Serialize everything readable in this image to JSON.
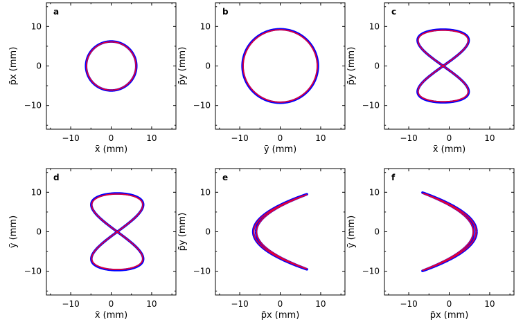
{
  "figure": {
    "description_note": ""
  },
  "colors": {
    "series_a": "#0000ff",
    "series_b": "#e0003a",
    "axis": "#000000"
  },
  "chart_data": [
    {
      "panel": "a",
      "type": "line",
      "xlabel": "x̄ (mm)",
      "ylabel": "p̄x (mm)",
      "xlim": [
        -16,
        16
      ],
      "ylim": [
        -16,
        16
      ],
      "xticks": [
        -10,
        0,
        10
      ],
      "yticks": [
        -10,
        0,
        10
      ],
      "xticklabels": [
        "−10",
        "0",
        "10"
      ],
      "yticklabels": [
        "−10",
        "0",
        "10"
      ],
      "grid": false,
      "curve": {
        "kind": "ellipse",
        "ax": 6.2,
        "ay": 6.2,
        "shape": "circle"
      },
      "series": [
        {
          "color": "#0000ff",
          "values": [
            [
              6.2,
              0
            ],
            [
              4.4,
              4.4
            ],
            [
              0,
              6.2
            ],
            [
              -4.4,
              4.4
            ],
            [
              -6.2,
              0
            ],
            [
              -4.4,
              -4.4
            ],
            [
              0,
              -6.2
            ],
            [
              4.4,
              -4.4
            ]
          ]
        },
        {
          "color": "#e0003a",
          "values": [
            [
              6.1,
              0
            ],
            [
              4.3,
              4.3
            ],
            [
              0,
              6.1
            ],
            [
              -4.3,
              4.3
            ],
            [
              -6.1,
              0
            ],
            [
              -4.3,
              -4.3
            ],
            [
              0,
              -6.1
            ],
            [
              4.3,
              -4.3
            ]
          ]
        }
      ]
    },
    {
      "panel": "b",
      "type": "line",
      "xlabel": "ȳ (mm)",
      "ylabel": "p̄y (mm)",
      "xlim": [
        -16,
        16
      ],
      "ylim": [
        -16,
        16
      ],
      "xticks": [
        -10,
        0,
        10
      ],
      "yticks": [
        -10,
        0,
        10
      ],
      "xticklabels": [
        "−10",
        "0",
        "10"
      ],
      "yticklabels": [
        "−10",
        "0",
        "10"
      ],
      "grid": false,
      "curve": {
        "kind": "ellipse",
        "ax": 9.3,
        "ay": 9.3,
        "shape": "circle"
      },
      "series": [
        {
          "color": "#0000ff",
          "values": [
            [
              9.3,
              0
            ],
            [
              6.6,
              6.6
            ],
            [
              0,
              9.3
            ],
            [
              -6.6,
              6.6
            ],
            [
              -9.3,
              0
            ],
            [
              -6.6,
              -6.6
            ],
            [
              0,
              -9.3
            ],
            [
              6.6,
              -6.6
            ]
          ]
        },
        {
          "color": "#e0003a",
          "values": [
            [
              9.2,
              0
            ],
            [
              6.5,
              6.5
            ],
            [
              0,
              9.2
            ],
            [
              -6.5,
              6.5
            ],
            [
              -9.2,
              0
            ],
            [
              -6.5,
              -6.5
            ],
            [
              0,
              -9.2
            ],
            [
              6.5,
              -6.5
            ]
          ]
        }
      ]
    },
    {
      "panel": "c",
      "type": "line",
      "xlabel": "x̄ (mm)",
      "ylabel": "p̄y (mm)",
      "xlim": [
        -16,
        16
      ],
      "ylim": [
        -16,
        16
      ],
      "xticks": [
        -10,
        0,
        10
      ],
      "yticks": [
        -10,
        0,
        10
      ],
      "xticklabels": [
        "−10",
        "0",
        "10"
      ],
      "yticklabels": [
        "−10",
        "0",
        "10"
      ],
      "grid": false,
      "curve": {
        "kind": "figure8",
        "ax": 6.3,
        "ay": 9.2,
        "x0": -1.5,
        "shape": "figure-eight vertical"
      },
      "series": [
        {
          "color": "#0000ff",
          "values": [
            [
              -1.5,
              0
            ],
            [
              6.3,
              8.4
            ],
            [
              -6.3,
              8.4
            ],
            [
              -1.5,
              0
            ],
            [
              6.3,
              -8.4
            ],
            [
              -6.3,
              -8.4
            ]
          ]
        },
        {
          "color": "#e0003a",
          "values": [
            [
              -1.5,
              0
            ],
            [
              6.2,
              8.3
            ],
            [
              -6.2,
              8.3
            ],
            [
              -1.5,
              0
            ],
            [
              6.2,
              -8.3
            ],
            [
              -6.2,
              -8.3
            ]
          ]
        }
      ]
    },
    {
      "panel": "d",
      "type": "line",
      "xlabel": "x̄ (mm)",
      "ylabel": "ȳ (mm)",
      "xlim": [
        -16,
        16
      ],
      "ylim": [
        -16,
        16
      ],
      "xticks": [
        -10,
        0,
        10
      ],
      "yticks": [
        -10,
        0,
        10
      ],
      "xticklabels": [
        "−10",
        "0",
        "10"
      ],
      "yticklabels": [
        "−10",
        "0",
        "10"
      ],
      "grid": false,
      "curve": {
        "kind": "figure8",
        "ax": 6.4,
        "ay": 9.7,
        "x0": 1.5,
        "shape": "figure-eight vertical"
      },
      "series": [
        {
          "color": "#0000ff",
          "values": [
            [
              1.5,
              0
            ],
            [
              6.4,
              9.0
            ],
            [
              -6.4,
              9.0
            ],
            [
              1.5,
              0
            ],
            [
              6.4,
              -9.0
            ],
            [
              -6.4,
              -9.0
            ]
          ]
        },
        {
          "color": "#e0003a",
          "values": [
            [
              1.5,
              0
            ],
            [
              6.3,
              8.9
            ],
            [
              -6.3,
              8.9
            ],
            [
              1.5,
              0
            ],
            [
              6.3,
              -8.9
            ],
            [
              -6.3,
              -8.9
            ]
          ]
        }
      ]
    },
    {
      "panel": "e",
      "type": "line",
      "xlabel": "p̄x (mm)",
      "ylabel": "p̄y (mm)",
      "xlim": [
        -16,
        16
      ],
      "ylim": [
        -16,
        16
      ],
      "xticks": [
        -10,
        0,
        10
      ],
      "yticks": [
        -10,
        0,
        10
      ],
      "xticklabels": [
        "−10",
        "0",
        "10"
      ],
      "yticklabels": [
        "−10",
        "0",
        "10"
      ],
      "grid": false,
      "curve": {
        "kind": "parabola",
        "xmin": -6.3,
        "xmax": 6.6,
        "ymax": 9.5,
        "dir": 1,
        "shape": "opening right"
      },
      "series": [
        {
          "color": "#0000ff",
          "values": [
            [
              6.6,
              9.5
            ],
            [
              -6.3,
              0
            ],
            [
              6.6,
              -9.5
            ]
          ]
        },
        {
          "color": "#e0003a",
          "values": [
            [
              6.5,
              9.4
            ],
            [
              -6.1,
              0
            ],
            [
              6.5,
              -9.4
            ]
          ]
        }
      ]
    },
    {
      "panel": "f",
      "type": "line",
      "xlabel": "p̄x (mm)",
      "ylabel": "ȳ (mm)",
      "xlim": [
        -16,
        16
      ],
      "ylim": [
        -16,
        16
      ],
      "xticks": [
        -10,
        0,
        10
      ],
      "yticks": [
        -10,
        0,
        10
      ],
      "xticklabels": [
        "−10",
        "0",
        "10"
      ],
      "yticklabels": [
        "−10",
        "0",
        "10"
      ],
      "grid": false,
      "curve": {
        "kind": "parabola",
        "xmin": -6.6,
        "xmax": 6.4,
        "ymax": 9.9,
        "dir": -1,
        "shape": "opening left"
      },
      "series": [
        {
          "color": "#0000ff",
          "values": [
            [
              -6.6,
              9.9
            ],
            [
              6.4,
              0
            ],
            [
              -6.6,
              -9.9
            ]
          ]
        },
        {
          "color": "#e0003a",
          "values": [
            [
              -6.5,
              9.8
            ],
            [
              6.2,
              0
            ],
            [
              -6.5,
              -9.8
            ]
          ]
        }
      ]
    }
  ]
}
